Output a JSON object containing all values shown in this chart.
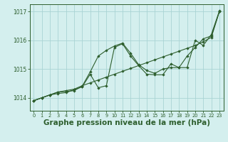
{
  "background_color": "#d4efee",
  "grid_color": "#aad4d4",
  "line_color": "#2d5e2d",
  "xlabel": "Graphe pression niveau de la mer (hPa)",
  "xlabel_fontsize": 7.5,
  "xlim": [
    -0.5,
    23.5
  ],
  "ylim": [
    1013.55,
    1017.25
  ],
  "yticks": [
    1014,
    1015,
    1016,
    1017
  ],
  "xticks": [
    0,
    1,
    2,
    3,
    4,
    5,
    6,
    7,
    8,
    9,
    10,
    11,
    12,
    13,
    14,
    15,
    16,
    17,
    18,
    19,
    20,
    21,
    22,
    23
  ],
  "line1_x": [
    0,
    1,
    2,
    3,
    4,
    5,
    6,
    7,
    8,
    9,
    10,
    11,
    12,
    13,
    14,
    15,
    16,
    17,
    18,
    19,
    20,
    21,
    22,
    23
  ],
  "line1_y": [
    1013.9,
    1014.0,
    1014.1,
    1014.2,
    1014.25,
    1014.3,
    1014.42,
    1014.52,
    1014.62,
    1014.72,
    1014.82,
    1014.92,
    1015.02,
    1015.12,
    1015.22,
    1015.32,
    1015.42,
    1015.52,
    1015.62,
    1015.72,
    1015.82,
    1015.95,
    1016.1,
    1017.0
  ],
  "line2_x": [
    0,
    1,
    2,
    3,
    4,
    5,
    6,
    7,
    8,
    9,
    10,
    11,
    12,
    13,
    14,
    15,
    16,
    17,
    18,
    19,
    20,
    21,
    22,
    23
  ],
  "line2_y": [
    1013.9,
    1014.0,
    1014.1,
    1014.2,
    1014.22,
    1014.25,
    1014.4,
    1014.9,
    1015.45,
    1015.65,
    1015.8,
    1015.9,
    1015.55,
    1015.15,
    1014.95,
    1014.85,
    1015.0,
    1015.05,
    1015.05,
    1015.45,
    1015.75,
    1016.05,
    1016.15,
    1017.0
  ],
  "line3_x": [
    0,
    1,
    2,
    3,
    4,
    5,
    6,
    7,
    8,
    9,
    10,
    11,
    12,
    13,
    14,
    15,
    16,
    17,
    18,
    19,
    20,
    21,
    22,
    23
  ],
  "line3_y": [
    1013.9,
    1014.0,
    1014.1,
    1014.15,
    1014.18,
    1014.28,
    1014.38,
    1014.82,
    1014.35,
    1014.42,
    1015.75,
    1015.88,
    1015.45,
    1015.12,
    1014.82,
    1014.8,
    1014.8,
    1015.18,
    1015.05,
    1015.05,
    1016.0,
    1015.82,
    1016.2,
    1017.02
  ]
}
